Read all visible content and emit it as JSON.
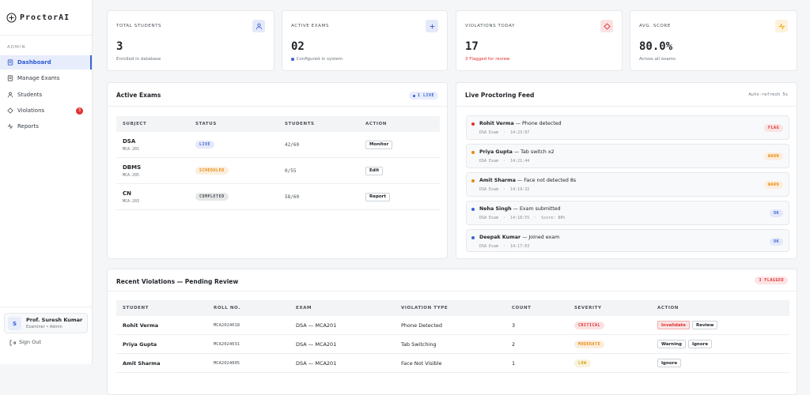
{
  "sidebar": {
    "brand": "ProctorAI",
    "section": "ADMIN",
    "nav": [
      {
        "label": "Dashboard"
      },
      {
        "label": "Manage Exams"
      },
      {
        "label": "Students"
      },
      {
        "label": "Violations",
        "badge": "3"
      },
      {
        "label": "Reports"
      }
    ],
    "user": {
      "initial": "S",
      "name": "Prof. Suresh Kumar",
      "role": "Examiner • Admin"
    },
    "sign_out": "Sign Out"
  },
  "stats": [
    {
      "label": "TOTAL STUDENTS",
      "value": "3",
      "note": "Enrolled in database",
      "color": "#3b63d9"
    },
    {
      "label": "ACTIVE EXAMS",
      "value": "02",
      "note": "Configured in system",
      "color": "#3b63d9"
    },
    {
      "label": "VIOLATIONS TODAY",
      "value": "17",
      "note": "3 Flagged for review",
      "color": "#e03131"
    },
    {
      "label": "AVG. SCORE",
      "value": "80.0%",
      "note": "Across all exams",
      "color": "#f0a500"
    }
  ],
  "active_exams": {
    "title": "Active Exams",
    "badge": "1 LIVE",
    "columns": [
      "SUBJECT",
      "STATUS",
      "STUDENTS",
      "ACTION"
    ],
    "rows": [
      {
        "subject": "DSA",
        "code": "MCA-201",
        "status": "LIVE",
        "status_color": "#3b63d9",
        "students": "42/60",
        "action": "Monitor"
      },
      {
        "subject": "DBMS",
        "code": "MCA-205",
        "status": "SCHEDULED",
        "status_color": "#e8890c",
        "students": "0/55",
        "action": "Edit"
      },
      {
        "subject": "CN",
        "code": "MCA-203",
        "status": "COMPLETED",
        "status_color": "#495057",
        "students": "58/60",
        "action": "Report"
      }
    ]
  },
  "feed": {
    "title": "Live Proctoring Feed",
    "refresh": "Auto-refresh 5s",
    "items": [
      {
        "name": "Rohit Verma",
        "event": "— Phone detected",
        "meta": "DSA Exam  ·  14:23:07",
        "tag": "FLAG",
        "color": "#e03131"
      },
      {
        "name": "Priya Gupta",
        "event": "— Tab switch x2",
        "meta": "DSA Exam  ·  14:21:44",
        "tag": "WARN",
        "color": "#e8890c"
      },
      {
        "name": "Amit Sharma",
        "event": "— Face not detected 8s",
        "meta": "DSA Exam  ·  14:19:32",
        "tag": "WARN",
        "color": "#e8890c"
      },
      {
        "name": "Neha Singh",
        "event": "— Exam submitted",
        "meta": "DSA Exam  ·  14:18:55  ·  Score: 88%",
        "tag": "OK",
        "color": "#3b63d9"
      },
      {
        "name": "Deepak Kumar",
        "event": "— Joined exam",
        "meta": "DSA Exam  ·  14:17:03",
        "tag": "OK",
        "color": "#3b63d9"
      }
    ]
  },
  "violations": {
    "title": "Recent Violations — Pending Review",
    "badge": "3 FLAGGED",
    "columns": [
      "STUDENT",
      "ROLL NO.",
      "EXAM",
      "VIOLATION TYPE",
      "COUNT",
      "SEVERITY",
      "ACTION"
    ],
    "rows": [
      {
        "student": "Rohit Verma",
        "roll": "MCA2024018",
        "exam": "DSA — MCA201",
        "type": "Phone Detected",
        "count": "3",
        "severity": "CRITICAL",
        "color": "#e03131",
        "actions": [
          "Invalidate",
          "Review"
        ]
      },
      {
        "student": "Priya Gupta",
        "roll": "MCA2024031",
        "exam": "DSA — MCA201",
        "type": "Tab Switching",
        "count": "2",
        "severity": "MODERATE",
        "color": "#e8890c",
        "actions": [
          "Warning",
          "Ignore"
        ]
      },
      {
        "student": "Amit Sharma",
        "roll": "MCA2024005",
        "exam": "DSA — MCA201",
        "type": "Face Not Visible",
        "count": "1",
        "severity": "LOW",
        "color": "#d4a20a",
        "actions": [
          "Ignore"
        ]
      }
    ]
  }
}
